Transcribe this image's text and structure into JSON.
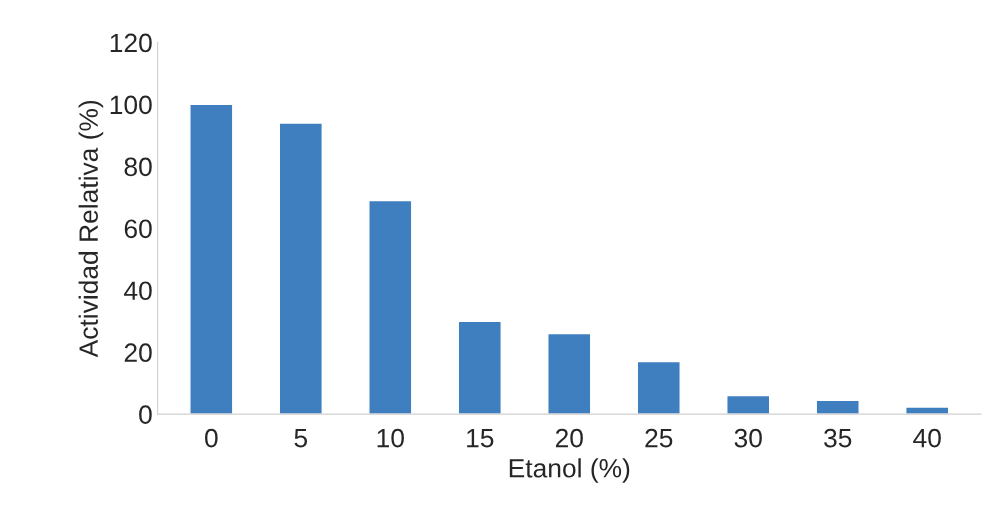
{
  "chart_data": {
    "type": "bar",
    "xlabel": "Etanol (%)",
    "ylabel": "Actividad Relativa (%)",
    "categories": [
      "0",
      "5",
      "10",
      "15",
      "20",
      "25",
      "30",
      "35",
      "40"
    ],
    "values": [
      100,
      94,
      69,
      30,
      26,
      17,
      6,
      4.5,
      2.3
    ],
    "color": "#3f7fc0",
    "ylim": [
      0,
      120
    ],
    "yticks": [
      0,
      20,
      40,
      60,
      80,
      100,
      120
    ],
    "grid": false
  }
}
